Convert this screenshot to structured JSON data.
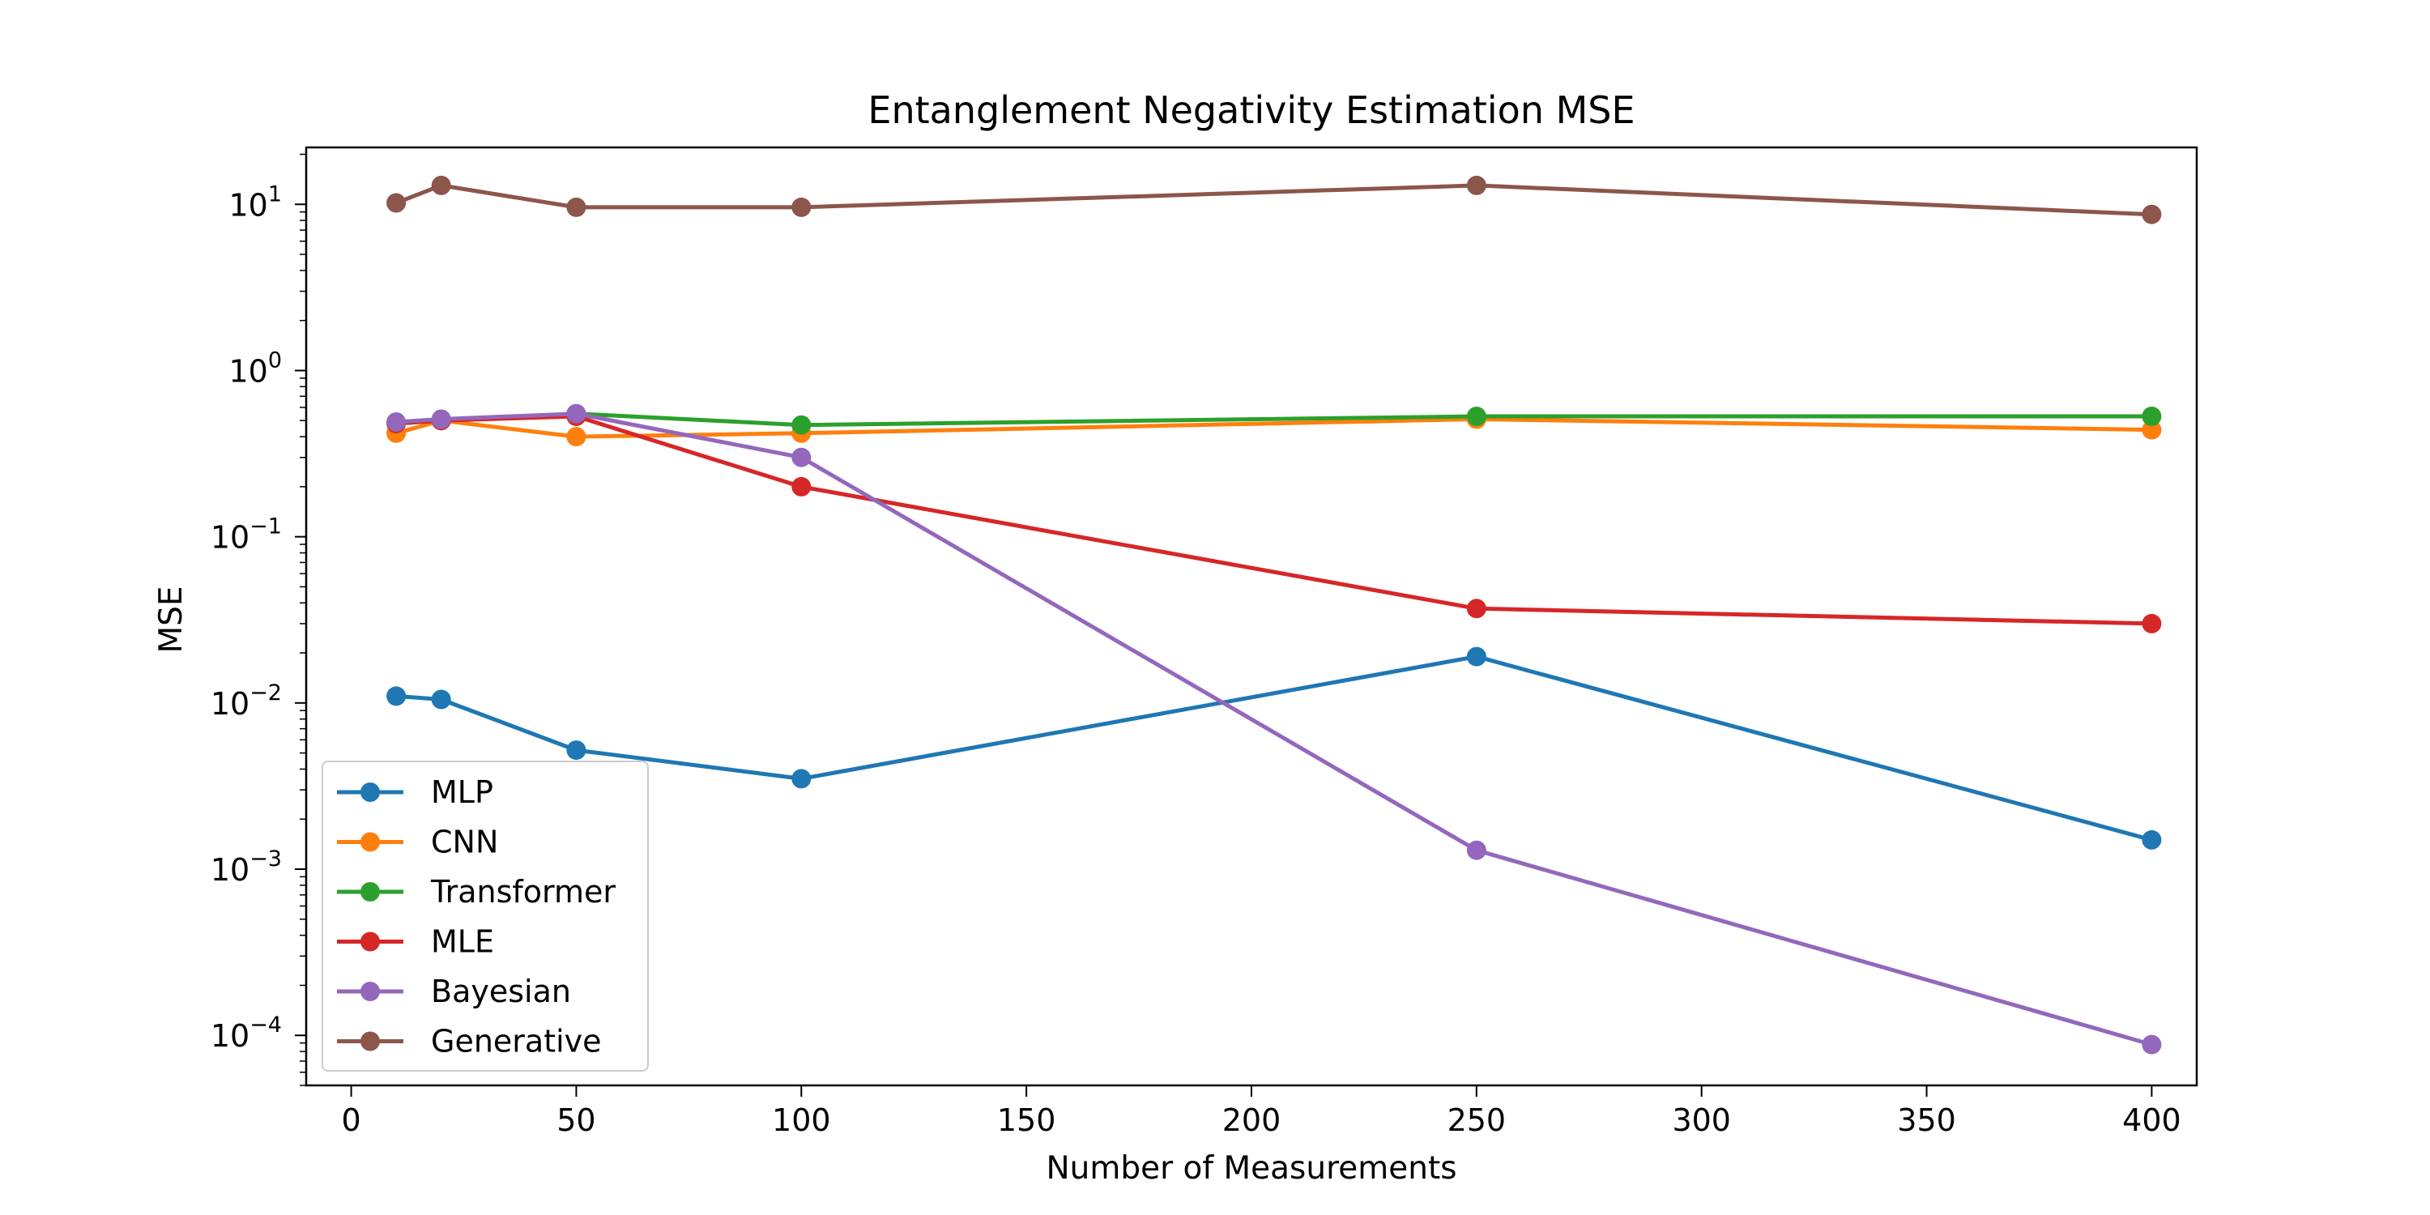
{
  "chart_data": {
    "type": "line",
    "title": "Entanglement Negativity Estimation MSE",
    "xlabel": "Number of Measurements",
    "ylabel": "MSE",
    "x": [
      10,
      20,
      50,
      100,
      250,
      400
    ],
    "xlim": [
      -10,
      410
    ],
    "xticks": [
      "0",
      "50",
      "100",
      "150",
      "200",
      "250",
      "300",
      "350",
      "400"
    ],
    "ylim": [
      5e-05,
      22
    ],
    "yscale": "log",
    "yticks": [
      {
        "base": "10",
        "exp": "−4",
        "value": 0.0001
      },
      {
        "base": "10",
        "exp": "−3",
        "value": 0.001
      },
      {
        "base": "10",
        "exp": "−2",
        "value": 0.01
      },
      {
        "base": "10",
        "exp": "−1",
        "value": 0.1
      },
      {
        "base": "10",
        "exp": "0",
        "value": 1
      },
      {
        "base": "10",
        "exp": "1",
        "value": 10
      }
    ],
    "grid": false,
    "legend_position": "lower-left",
    "series": [
      {
        "name": "MLP",
        "color": "#1f77b4",
        "values": [
          0.011,
          0.0105,
          0.0052,
          0.0035,
          0.019,
          0.0015
        ]
      },
      {
        "name": "CNN",
        "color": "#ff7f0e",
        "values": [
          0.42,
          0.5,
          0.4,
          0.42,
          0.51,
          0.44
        ]
      },
      {
        "name": "Transformer",
        "color": "#2ca02c",
        "values": [
          0.48,
          0.5,
          0.55,
          0.47,
          0.53,
          0.53
        ]
      },
      {
        "name": "MLE",
        "color": "#d62728",
        "values": [
          0.48,
          0.5,
          0.53,
          0.2,
          0.037,
          0.03
        ]
      },
      {
        "name": "Bayesian",
        "color": "#9467bd",
        "values": [
          0.49,
          0.51,
          0.55,
          0.3,
          0.0013,
          8.8e-05
        ]
      },
      {
        "name": "Generative",
        "color": "#8c564b",
        "values": [
          10.2,
          13.0,
          9.6,
          9.6,
          13.0,
          8.7
        ]
      }
    ]
  }
}
